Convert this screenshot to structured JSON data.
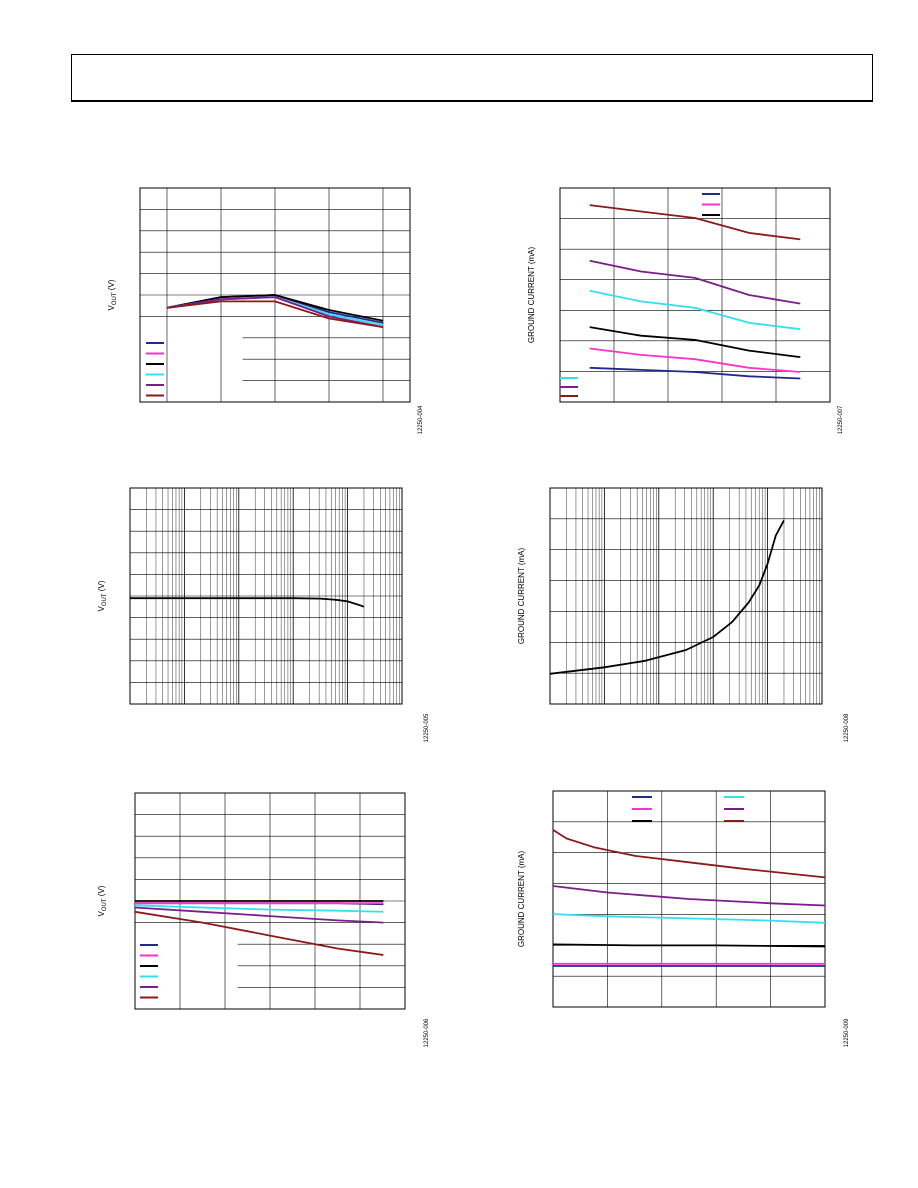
{
  "header": {
    "title": ""
  },
  "colors": {
    "navy": "#1f2a8c",
    "magenta": "#ff33cc",
    "black": "#000000",
    "cyan": "#33e0f0",
    "purple": "#7a1f8a",
    "maroon": "#8b1a1a"
  },
  "chart_data": [
    {
      "id": "chart1",
      "type": "line",
      "ylabel": "V_OUT (V)",
      "ylabel_main": "V",
      "ylabel_sub": "OUT",
      "ylabel_unit": " (V)",
      "figure_id": "12250-004",
      "grid": true,
      "legend": "bottom-left",
      "xlim": [
        0,
        1
      ],
      "ylim": [
        0,
        1
      ],
      "series": [
        {
          "color": "navy",
          "x": [
            0.1,
            0.3,
            0.5,
            0.7,
            0.9
          ],
          "y": [
            0.44,
            0.49,
            0.5,
            0.42,
            0.37
          ]
        },
        {
          "color": "magenta",
          "x": [
            0.1,
            0.3,
            0.5,
            0.7,
            0.9
          ],
          "y": [
            0.44,
            0.48,
            0.49,
            0.41,
            0.36
          ]
        },
        {
          "color": "black",
          "x": [
            0.1,
            0.3,
            0.5,
            0.7,
            0.9
          ],
          "y": [
            0.44,
            0.49,
            0.5,
            0.43,
            0.38
          ]
        },
        {
          "color": "cyan",
          "x": [
            0.1,
            0.3,
            0.5,
            0.7,
            0.9
          ],
          "y": [
            0.44,
            0.48,
            0.49,
            0.41,
            0.36
          ]
        },
        {
          "color": "purple",
          "x": [
            0.1,
            0.3,
            0.5,
            0.7,
            0.9
          ],
          "y": [
            0.44,
            0.48,
            0.49,
            0.4,
            0.35
          ]
        },
        {
          "color": "maroon",
          "x": [
            0.1,
            0.3,
            0.5,
            0.7,
            0.9
          ],
          "y": [
            0.44,
            0.47,
            0.47,
            0.39,
            0.35
          ]
        }
      ]
    },
    {
      "id": "chart2",
      "type": "line",
      "ylabel": "GROUND CURRENT (mA)",
      "figure_id": "12250-007",
      "grid": true,
      "legend": "top-right",
      "xlim": [
        0,
        1
      ],
      "ylim": [
        0,
        1
      ],
      "series": [
        {
          "color": "maroon",
          "x": [
            0.11,
            0.3,
            0.5,
            0.7,
            0.89
          ],
          "y": [
            0.92,
            0.89,
            0.86,
            0.79,
            0.76
          ]
        },
        {
          "color": "purple",
          "x": [
            0.11,
            0.3,
            0.5,
            0.7,
            0.89
          ],
          "y": [
            0.66,
            0.61,
            0.58,
            0.5,
            0.46
          ]
        },
        {
          "color": "cyan",
          "x": [
            0.11,
            0.3,
            0.5,
            0.7,
            0.89
          ],
          "y": [
            0.52,
            0.47,
            0.44,
            0.37,
            0.34
          ]
        },
        {
          "color": "black",
          "x": [
            0.11,
            0.3,
            0.5,
            0.7,
            0.89
          ],
          "y": [
            0.35,
            0.31,
            0.29,
            0.24,
            0.21
          ]
        },
        {
          "color": "magenta",
          "x": [
            0.11,
            0.3,
            0.5,
            0.7,
            0.89
          ],
          "y": [
            0.25,
            0.22,
            0.2,
            0.16,
            0.14
          ]
        },
        {
          "color": "navy",
          "x": [
            0.11,
            0.3,
            0.5,
            0.7,
            0.89
          ],
          "y": [
            0.16,
            0.15,
            0.14,
            0.12,
            0.11
          ]
        }
      ]
    },
    {
      "id": "chart3",
      "type": "line",
      "ylabel": "V_OUT (V)",
      "ylabel_main": "V",
      "ylabel_sub": "OUT",
      "ylabel_unit": " (V)",
      "figure_id": "12250-005",
      "grid": true,
      "xscale": "log",
      "xlim": [
        0,
        1
      ],
      "ylim": [
        0,
        1
      ],
      "series": [
        {
          "color": "black",
          "x": [
            0.0,
            0.2,
            0.4,
            0.6,
            0.7,
            0.76,
            0.8,
            0.85,
            0.86
          ],
          "y": [
            0.49,
            0.49,
            0.49,
            0.49,
            0.488,
            0.482,
            0.475,
            0.455,
            0.45
          ]
        }
      ]
    },
    {
      "id": "chart4",
      "type": "line",
      "ylabel": "GROUND CURRENT (mA)",
      "figure_id": "12250-008",
      "grid": true,
      "xscale": "log",
      "xlim": [
        0,
        1
      ],
      "ylim": [
        0,
        1
      ],
      "series": [
        {
          "color": "black",
          "x": [
            0.0,
            0.2,
            0.35,
            0.5,
            0.6,
            0.67,
            0.73,
            0.77,
            0.8,
            0.83,
            0.86
          ],
          "y": [
            0.14,
            0.17,
            0.2,
            0.25,
            0.31,
            0.38,
            0.47,
            0.55,
            0.65,
            0.78,
            0.85
          ]
        }
      ]
    },
    {
      "id": "chart5",
      "type": "line",
      "ylabel": "V_OUT (V)",
      "ylabel_main": "V",
      "ylabel_sub": "OUT",
      "ylabel_unit": " (V)",
      "figure_id": "12250-006",
      "grid": true,
      "legend": "bottom-left",
      "xlim": [
        0,
        1
      ],
      "ylim": [
        0,
        1
      ],
      "series": [
        {
          "color": "navy",
          "x": [
            0.0,
            0.25,
            0.5,
            0.75,
            0.92
          ],
          "y": [
            0.49,
            0.49,
            0.49,
            0.49,
            0.485
          ]
        },
        {
          "color": "magenta",
          "x": [
            0.0,
            0.25,
            0.5,
            0.75,
            0.92
          ],
          "y": [
            0.49,
            0.49,
            0.49,
            0.49,
            0.49
          ]
        },
        {
          "color": "black",
          "x": [
            0.0,
            0.25,
            0.5,
            0.75,
            0.92
          ],
          "y": [
            0.5,
            0.5,
            0.5,
            0.5,
            0.5
          ]
        },
        {
          "color": "cyan",
          "x": [
            0.0,
            0.25,
            0.5,
            0.75,
            0.92
          ],
          "y": [
            0.48,
            0.47,
            0.46,
            0.455,
            0.45
          ]
        },
        {
          "color": "purple",
          "x": [
            0.0,
            0.25,
            0.5,
            0.75,
            0.92
          ],
          "y": [
            0.47,
            0.45,
            0.43,
            0.41,
            0.4
          ]
        },
        {
          "color": "maroon",
          "x": [
            0.0,
            0.25,
            0.5,
            0.75,
            0.92
          ],
          "y": [
            0.45,
            0.4,
            0.34,
            0.28,
            0.25
          ]
        }
      ]
    },
    {
      "id": "chart6",
      "type": "line",
      "ylabel": "GROUND CURRENT (mA)",
      "figure_id": "12250-009",
      "grid": true,
      "legend": "top",
      "xlim": [
        0,
        1
      ],
      "ylim": [
        0,
        1
      ],
      "series": [
        {
          "color": "maroon",
          "x": [
            0.0,
            0.05,
            0.15,
            0.3,
            0.5,
            0.7,
            1.0
          ],
          "y": [
            0.82,
            0.78,
            0.74,
            0.7,
            0.67,
            0.64,
            0.6
          ]
        },
        {
          "color": "purple",
          "x": [
            0.0,
            0.2,
            0.5,
            0.8,
            1.0
          ],
          "y": [
            0.56,
            0.53,
            0.5,
            0.48,
            0.47
          ]
        },
        {
          "color": "cyan",
          "x": [
            0.0,
            0.2,
            0.5,
            0.8,
            1.0
          ],
          "y": [
            0.43,
            0.42,
            0.41,
            0.4,
            0.39
          ]
        },
        {
          "color": "black",
          "x": [
            0.0,
            0.3,
            0.6,
            1.0
          ],
          "y": [
            0.29,
            0.285,
            0.285,
            0.28
          ]
        },
        {
          "color": "magenta",
          "x": [
            0.0,
            0.3,
            0.6,
            1.0
          ],
          "y": [
            0.2,
            0.2,
            0.2,
            0.2
          ]
        },
        {
          "color": "navy",
          "x": [
            0.0,
            0.3,
            0.6,
            1.0
          ],
          "y": [
            0.19,
            0.19,
            0.19,
            0.19
          ]
        }
      ]
    }
  ]
}
